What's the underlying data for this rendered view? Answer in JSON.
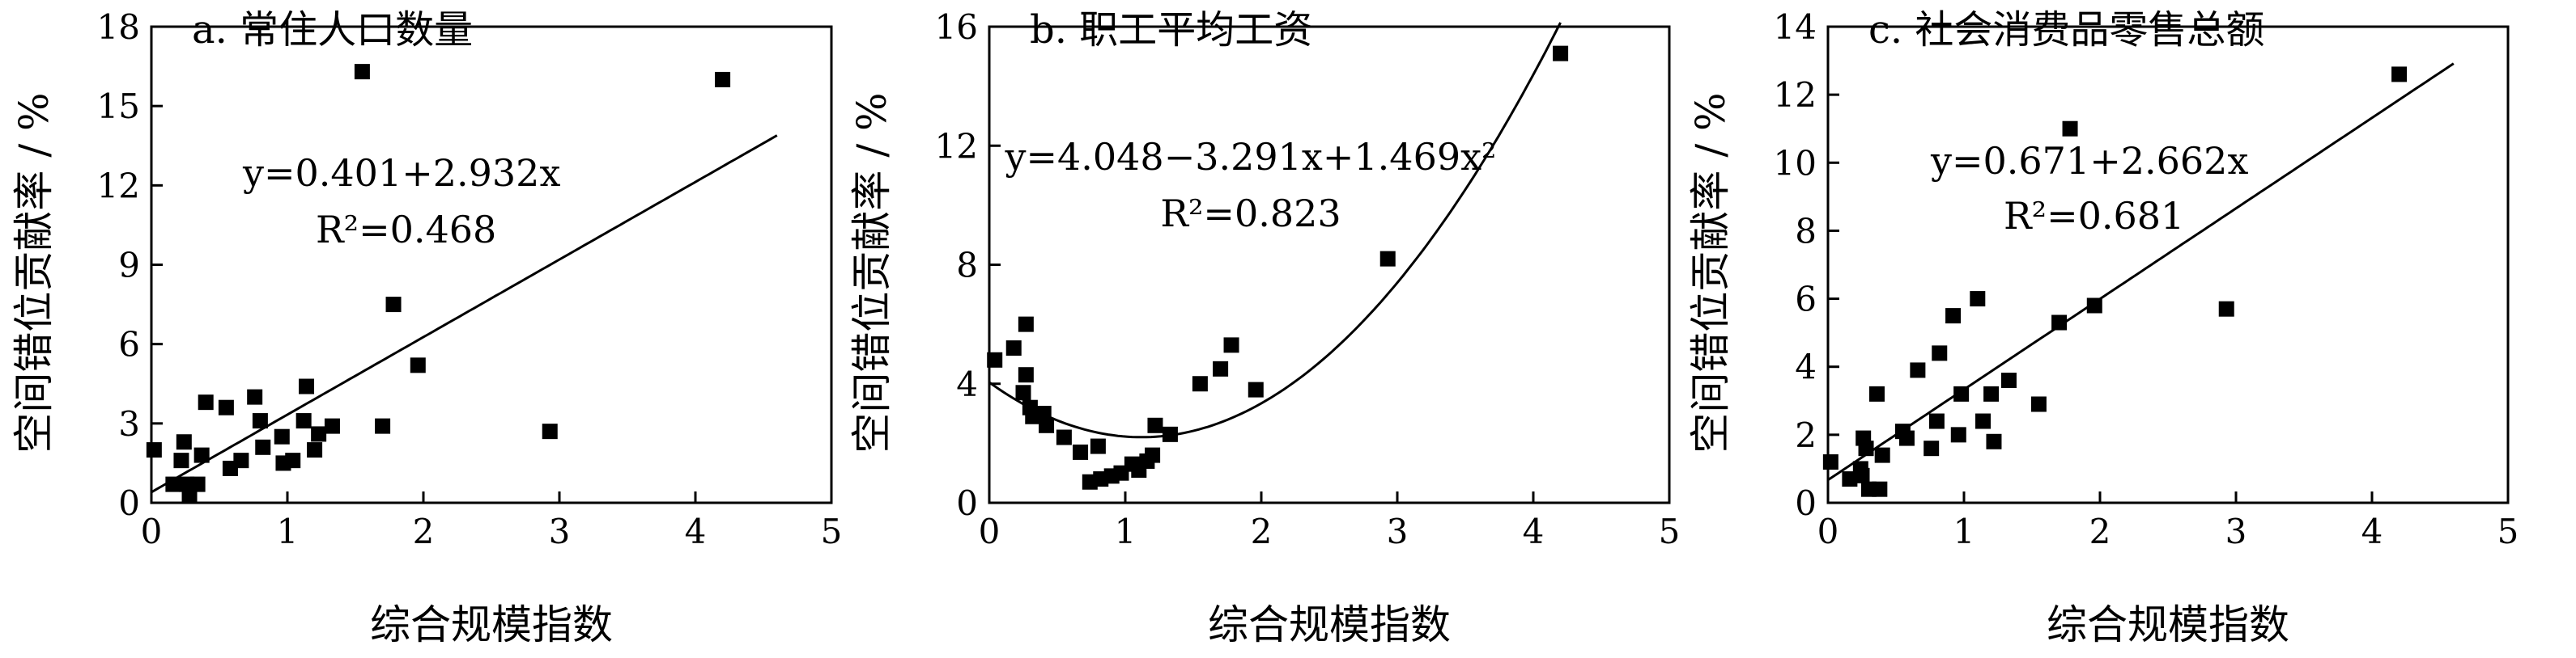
{
  "chart_data": [
    {
      "type": "scatter",
      "title": "a. 常住人口数量",
      "xlabel": "综合规模指数",
      "ylabel": "空间错位贡献率 / %",
      "xlim": [
        0,
        5
      ],
      "ylim": [
        0,
        18
      ],
      "xticks": [
        "0",
        "1",
        "2",
        "3",
        "4",
        "5"
      ],
      "yticks": [
        "0",
        "3",
        "6",
        "9",
        "12",
        "15",
        "18"
      ],
      "grid": false,
      "fit": {
        "kind": "linear",
        "coefficients": [
          0.401,
          2.932
        ],
        "x_range": [
          0,
          4.6
        ]
      },
      "annotation": {
        "equation": "y=0.401+2.932x",
        "r2": "R²=0.468"
      },
      "points": [
        [
          0.02,
          2.0
        ],
        [
          0.16,
          0.7
        ],
        [
          0.22,
          1.6
        ],
        [
          0.24,
          2.3
        ],
        [
          0.26,
          0.7
        ],
        [
          0.28,
          0.3
        ],
        [
          0.34,
          0.7
        ],
        [
          0.37,
          1.8
        ],
        [
          0.4,
          3.8
        ],
        [
          0.55,
          3.6
        ],
        [
          0.58,
          1.3
        ],
        [
          0.66,
          1.6
        ],
        [
          0.76,
          4.0
        ],
        [
          0.8,
          3.1
        ],
        [
          0.82,
          2.1
        ],
        [
          0.96,
          2.5
        ],
        [
          0.97,
          1.5
        ],
        [
          1.04,
          1.6
        ],
        [
          1.12,
          3.1
        ],
        [
          1.14,
          4.4
        ],
        [
          1.2,
          2.0
        ],
        [
          1.23,
          2.6
        ],
        [
          1.33,
          2.9
        ],
        [
          1.55,
          16.3
        ],
        [
          1.7,
          2.9
        ],
        [
          1.78,
          7.5
        ],
        [
          1.96,
          5.2
        ],
        [
          2.93,
          2.7
        ],
        [
          4.2,
          16.0
        ]
      ]
    },
    {
      "type": "scatter",
      "title": "b. 职工平均工资",
      "xlabel": "综合规模指数",
      "ylabel": "空间错位贡献率 / %",
      "xlim": [
        0,
        5
      ],
      "ylim": [
        0,
        16
      ],
      "xticks": [
        "0",
        "1",
        "2",
        "3",
        "4",
        "5"
      ],
      "yticks": [
        "0",
        "4",
        "8",
        "12",
        "16"
      ],
      "grid": false,
      "fit": {
        "kind": "quadratic",
        "coefficients": [
          4.048,
          -3.291,
          1.469
        ],
        "x_range": [
          0,
          4.2
        ]
      },
      "annotation": {
        "equation": "y=4.048−3.291x+1.469x²",
        "r2": "R²=0.823"
      },
      "points": [
        [
          0.04,
          4.8
        ],
        [
          0.18,
          5.2
        ],
        [
          0.25,
          3.7
        ],
        [
          0.27,
          6.0
        ],
        [
          0.27,
          4.3
        ],
        [
          0.3,
          3.2
        ],
        [
          0.32,
          2.9
        ],
        [
          0.4,
          3.0
        ],
        [
          0.42,
          2.6
        ],
        [
          0.55,
          2.2
        ],
        [
          0.67,
          1.7
        ],
        [
          0.74,
          0.7
        ],
        [
          0.8,
          1.9
        ],
        [
          0.82,
          0.8
        ],
        [
          0.9,
          0.9
        ],
        [
          0.97,
          1.0
        ],
        [
          1.05,
          1.3
        ],
        [
          1.1,
          1.1
        ],
        [
          1.16,
          1.4
        ],
        [
          1.2,
          1.6
        ],
        [
          1.22,
          2.6
        ],
        [
          1.33,
          2.3
        ],
        [
          1.55,
          4.0
        ],
        [
          1.7,
          4.5
        ],
        [
          1.78,
          5.3
        ],
        [
          1.96,
          3.8
        ],
        [
          2.93,
          8.2
        ],
        [
          4.2,
          15.1
        ]
      ]
    },
    {
      "type": "scatter",
      "title": "c. 社会消费品零售总额",
      "xlabel": "综合规模指数",
      "ylabel": "空间错位贡献率 / %",
      "xlim": [
        0,
        5
      ],
      "ylim": [
        0,
        14
      ],
      "xticks": [
        "0",
        "1",
        "2",
        "3",
        "4",
        "5"
      ],
      "yticks": [
        "0",
        "2",
        "4",
        "6",
        "8",
        "10",
        "12",
        "14"
      ],
      "grid": false,
      "fit": {
        "kind": "linear",
        "coefficients": [
          0.671,
          2.662
        ],
        "x_range": [
          0,
          4.6
        ]
      },
      "annotation": {
        "equation": "y=0.671+2.662x",
        "r2": "R²=0.681"
      },
      "points": [
        [
          0.02,
          1.2
        ],
        [
          0.16,
          0.7
        ],
        [
          0.24,
          1.0
        ],
        [
          0.25,
          0.8
        ],
        [
          0.26,
          1.9
        ],
        [
          0.28,
          1.6
        ],
        [
          0.3,
          0.4
        ],
        [
          0.36,
          3.2
        ],
        [
          0.38,
          0.4
        ],
        [
          0.4,
          1.4
        ],
        [
          0.55,
          2.1
        ],
        [
          0.58,
          1.9
        ],
        [
          0.66,
          3.9
        ],
        [
          0.76,
          1.6
        ],
        [
          0.8,
          2.4
        ],
        [
          0.82,
          4.4
        ],
        [
          0.92,
          5.5
        ],
        [
          0.96,
          2.0
        ],
        [
          0.98,
          3.2
        ],
        [
          1.1,
          6.0
        ],
        [
          1.14,
          2.4
        ],
        [
          1.2,
          3.2
        ],
        [
          1.22,
          1.8
        ],
        [
          1.33,
          3.6
        ],
        [
          1.55,
          2.9
        ],
        [
          1.7,
          5.3
        ],
        [
          1.78,
          11.0
        ],
        [
          1.96,
          5.8
        ],
        [
          2.93,
          5.7
        ],
        [
          4.2,
          12.6
        ]
      ]
    }
  ]
}
